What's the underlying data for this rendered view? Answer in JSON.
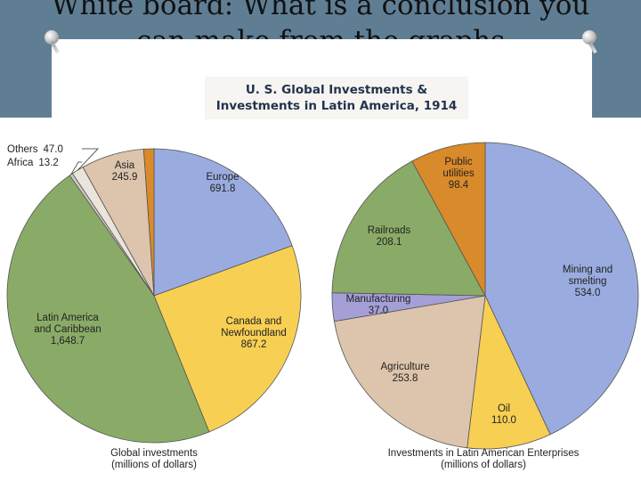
{
  "slide": {
    "title_line1": "White board: What is a conclusion you",
    "title_line2": "can make from the graphs"
  },
  "chart_data": [
    {
      "type": "pie",
      "title_line1": "U. S. Global Investments &",
      "title_line2": "Investments in Latin America, 1914",
      "caption_line1": "Global investments",
      "caption_line2": "(millions of dollars)",
      "slices": [
        {
          "label_lines": [
            "Europe"
          ],
          "value": 691.8,
          "value_text": "691.8",
          "color": "#9aacdf"
        },
        {
          "label_lines": [
            "Canada and",
            "Newfoundland"
          ],
          "value": 867.2,
          "value_text": "867.2",
          "color": "#f7cf53"
        },
        {
          "label_lines": [
            "Latin America",
            "and Caribbean"
          ],
          "value": 1648.7,
          "value_text": "1,648.7",
          "color": "#8aab67"
        },
        {
          "label_lines": [
            "Africa"
          ],
          "value": 13.2,
          "value_text": "13.2",
          "color": "#cfc7c1"
        },
        {
          "label_lines": [
            "Others"
          ],
          "value": 47.0,
          "value_text": "47.0",
          "color": "#eae4db"
        },
        {
          "label_lines": [
            "Asia"
          ],
          "value": 245.9,
          "value_text": "245.9",
          "color": "#ddc4ac"
        },
        {
          "label_lines": [
            ""
          ],
          "value": 40.0,
          "value_text": "",
          "color": "#d98a2a"
        }
      ]
    },
    {
      "type": "pie",
      "caption_line1": "Investments in Latin American Enterprises",
      "caption_line2": "(millions of dollars)",
      "slices": [
        {
          "label_lines": [
            "Mining and",
            "smelting"
          ],
          "value": 534.0,
          "value_text": "534.0",
          "color": "#9aacdf"
        },
        {
          "label_lines": [
            "Oil"
          ],
          "value": 110.0,
          "value_text": "110.0",
          "color": "#f7cf53"
        },
        {
          "label_lines": [
            "Agriculture"
          ],
          "value": 253.8,
          "value_text": "253.8",
          "color": "#ddc4ac"
        },
        {
          "label_lines": [
            "Manufacturing"
          ],
          "value": 37.0,
          "value_text": "37.0",
          "color": "#a59fd8"
        },
        {
          "label_lines": [
            "Railroads"
          ],
          "value": 208.1,
          "value_text": "208.1",
          "color": "#8aab67"
        },
        {
          "label_lines": [
            "Public",
            "utilities"
          ],
          "value": 98.4,
          "value_text": "98.4",
          "color": "#d98a2a"
        }
      ]
    }
  ]
}
